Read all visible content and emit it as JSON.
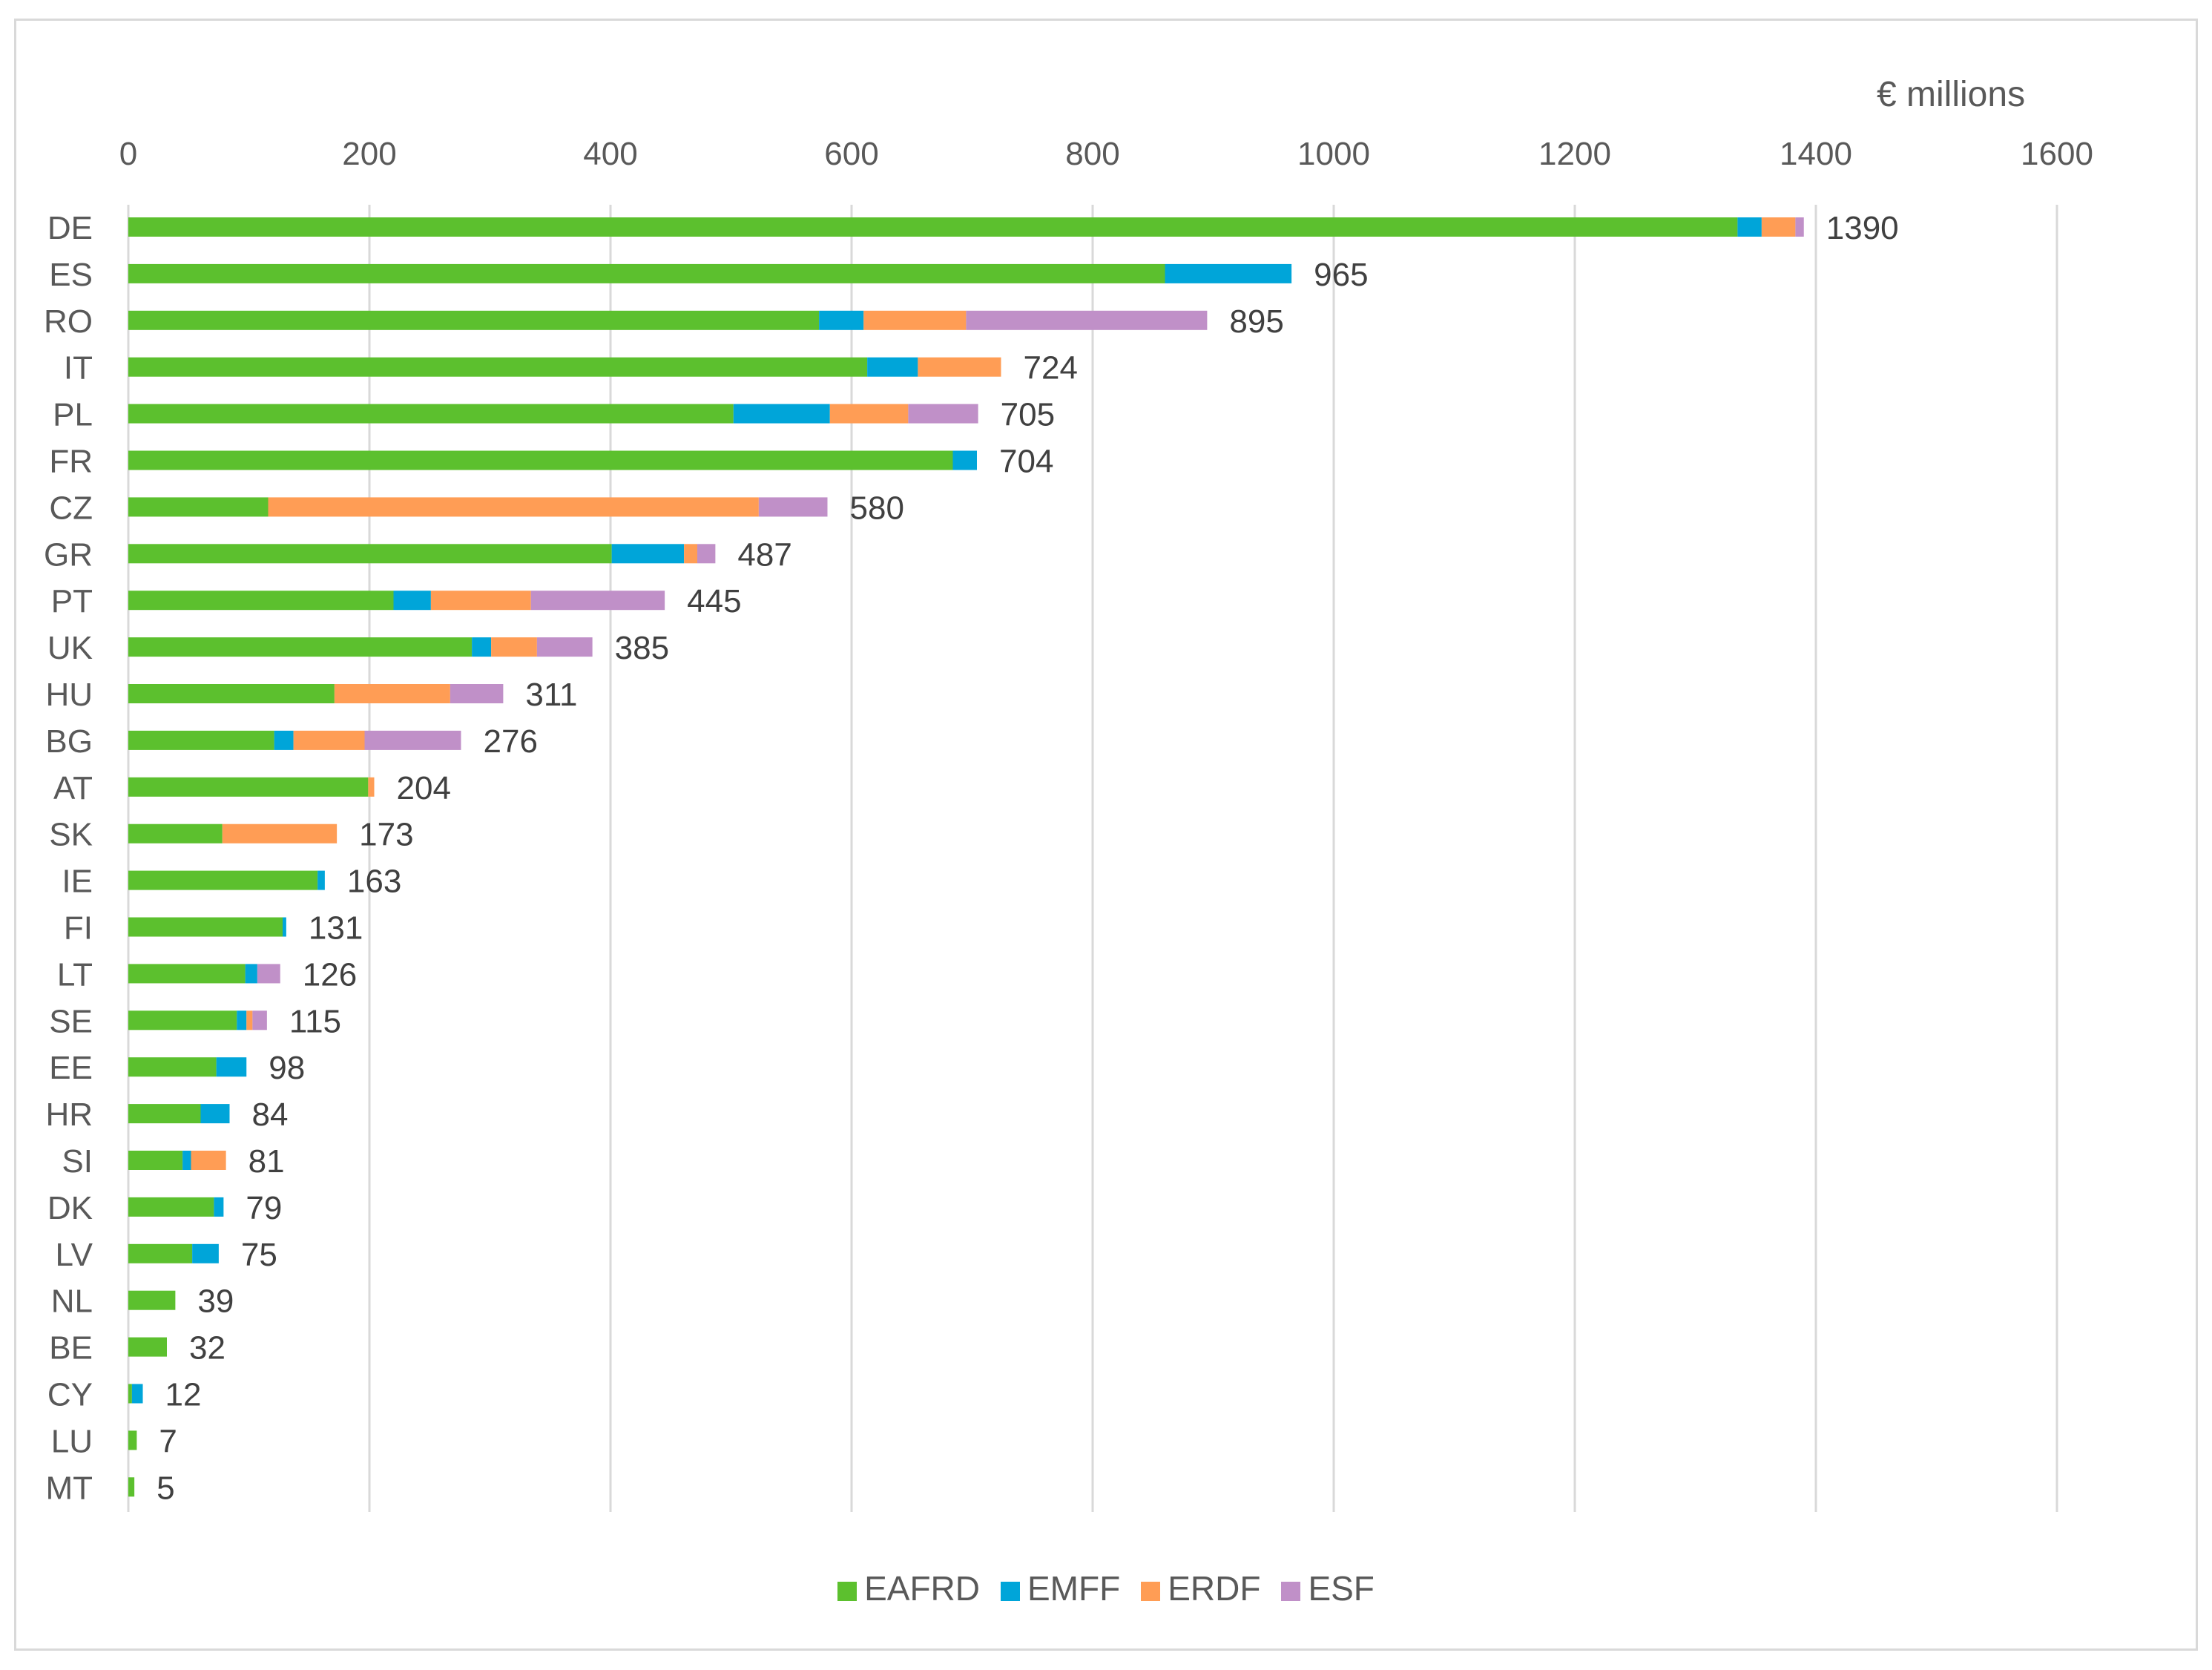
{
  "chart_data": {
    "type": "bar",
    "orientation": "horizontal",
    "stacked": true,
    "unit_label": "€ millions",
    "xlim": [
      0,
      1600
    ],
    "x_ticks": [
      "0",
      "200",
      "400",
      "600",
      "800",
      "1000",
      "1200",
      "1400",
      "1600"
    ],
    "x_axis_position": "top",
    "grid": true,
    "legend_position": "bottom",
    "categories": [
      "DE",
      "ES",
      "RO",
      "IT",
      "PL",
      "FR",
      "CZ",
      "GR",
      "PT",
      "UK",
      "HU",
      "BG",
      "AT",
      "SK",
      "IE",
      "FI",
      "LT",
      "SE",
      "EE",
      "HR",
      "SI",
      "DK",
      "LV",
      "NL",
      "BE",
      "CY",
      "LU",
      "MT"
    ],
    "totals": [
      "1390",
      "965",
      "895",
      "724",
      "705",
      "704",
      "580",
      "487",
      "445",
      "385",
      "311",
      "276",
      "204",
      "173",
      "163",
      "131",
      "126",
      "115",
      "98",
      "84",
      "81",
      "79",
      "75",
      "39",
      "32",
      "12",
      "7",
      "5"
    ],
    "series": [
      {
        "name": "EAFRD",
        "color": "#5cc02e",
        "values": [
          1335,
          860,
          573,
          613,
          502,
          684,
          116,
          401,
          220,
          285,
          171,
          121,
          199,
          78,
          157,
          128,
          97,
          90,
          73,
          60,
          45,
          71,
          53,
          39,
          32,
          3,
          7,
          5
        ]
      },
      {
        "name": "EMFF",
        "color": "#00a5d9",
        "values": [
          20,
          105,
          37,
          42,
          80,
          20,
          0,
          60,
          31,
          16,
          0,
          16,
          0,
          0,
          6,
          3,
          10,
          8,
          25,
          24,
          7,
          8,
          22,
          0,
          0,
          9,
          0,
          0
        ]
      },
      {
        "name": "ERDF",
        "color": "#ff9d55",
        "values": [
          28,
          0,
          85,
          69,
          65,
          0,
          407,
          11,
          83,
          38,
          96,
          59,
          5,
          95,
          0,
          0,
          0,
          5,
          0,
          0,
          29,
          0,
          0,
          0,
          0,
          0,
          0,
          0
        ]
      },
      {
        "name": "ESF",
        "color": "#c090c8",
        "values": [
          7,
          0,
          200,
          0,
          58,
          0,
          57,
          15,
          111,
          46,
          44,
          80,
          0,
          0,
          0,
          0,
          19,
          12,
          0,
          0,
          0,
          0,
          0,
          0,
          0,
          0,
          0,
          0
        ]
      }
    ]
  }
}
